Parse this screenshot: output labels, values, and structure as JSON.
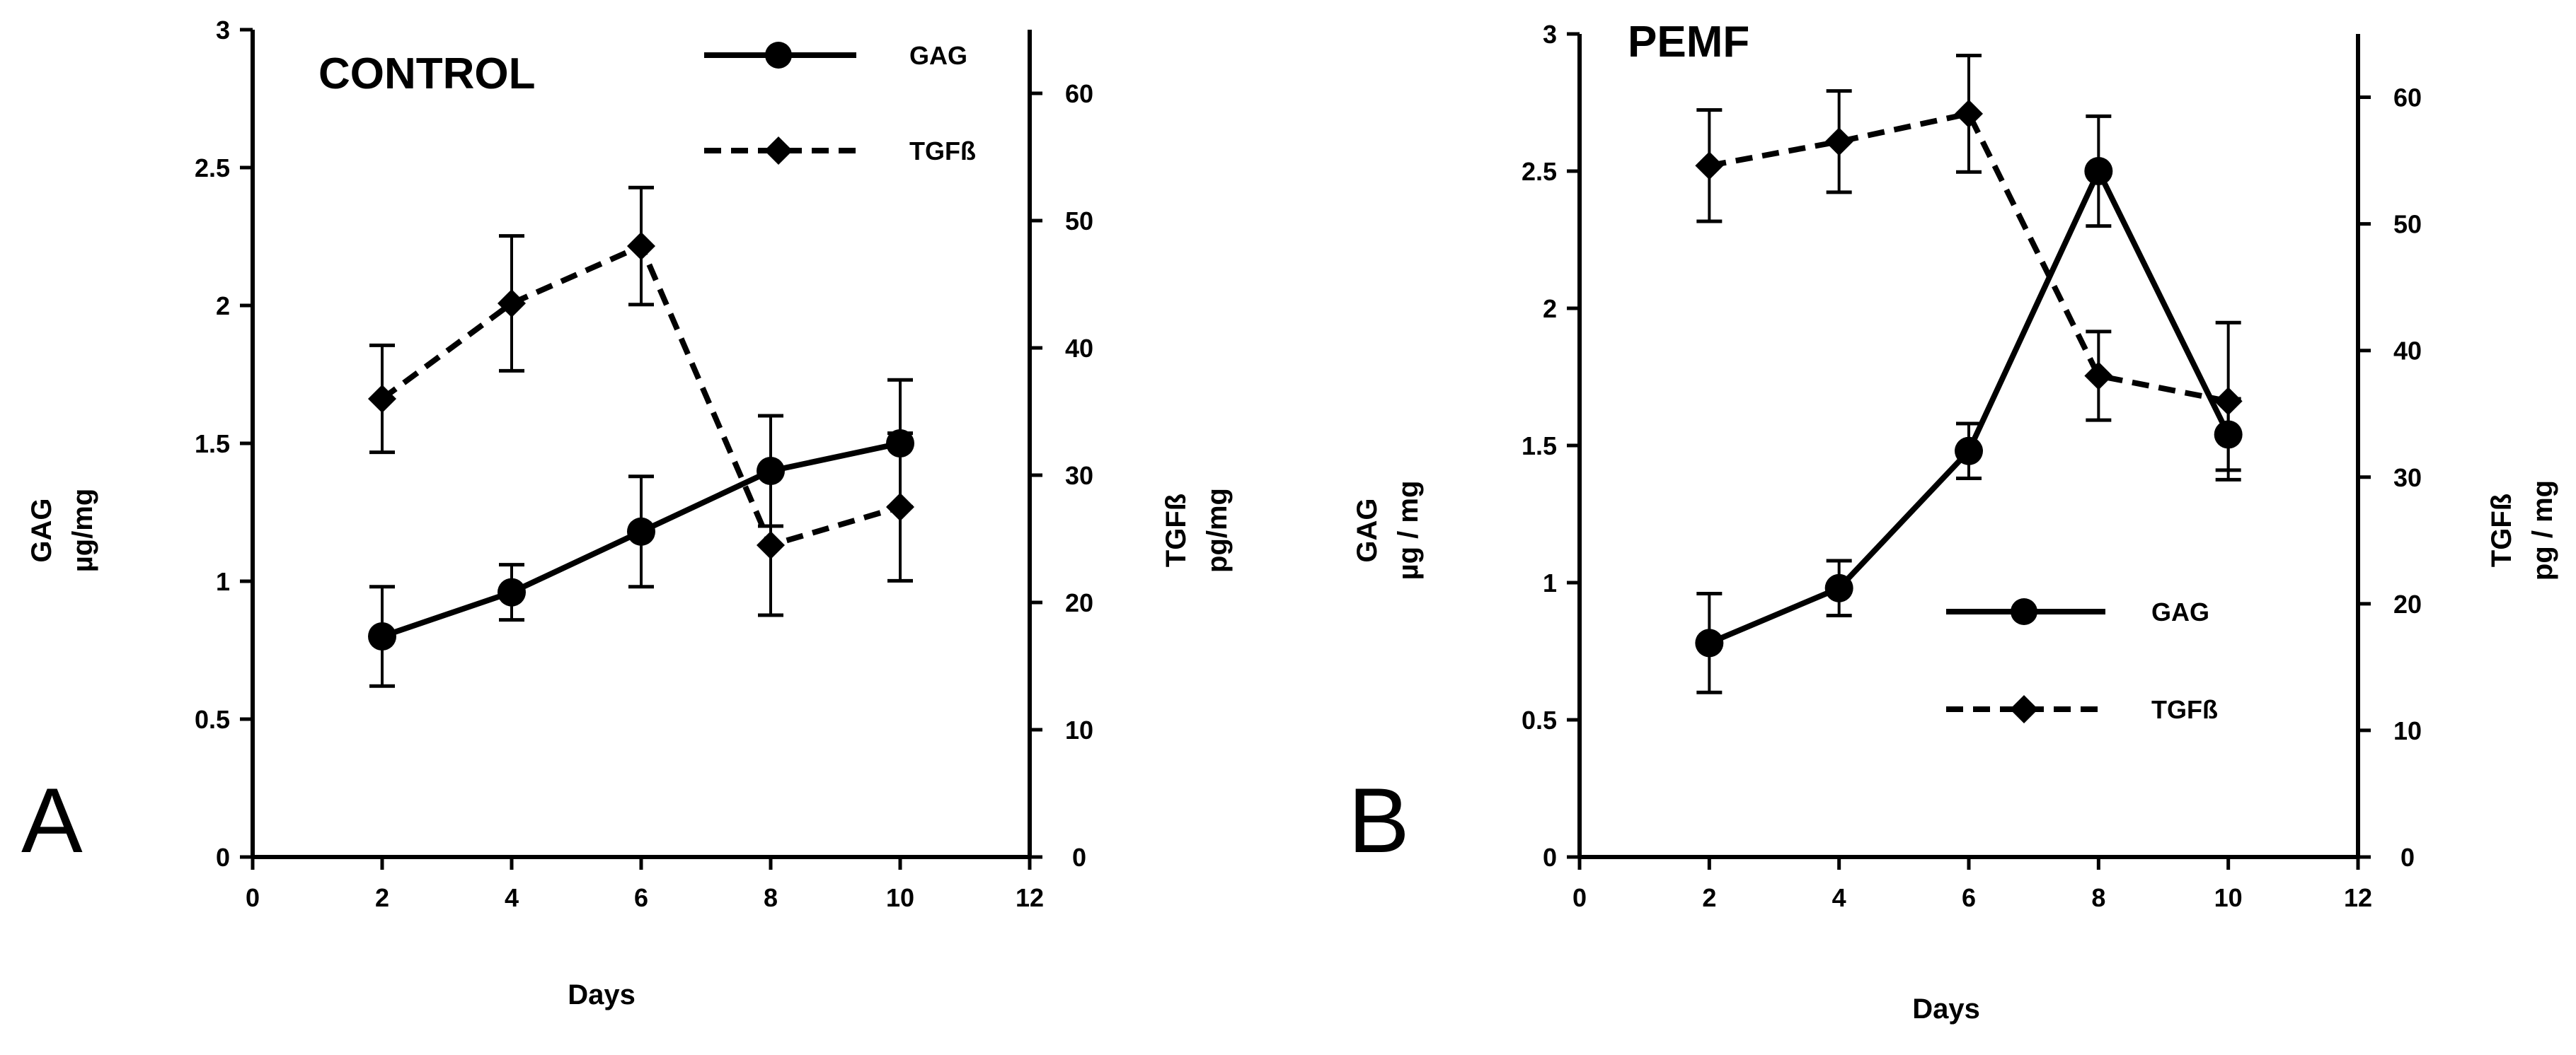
{
  "chart_data": [
    {
      "type": "line",
      "panel_label": "A",
      "title": "CONTROL",
      "xlabel": "Days",
      "ylabel_left": [
        "GAG",
        "µg/mg"
      ],
      "ylabel_right": [
        "TGFß",
        "pg/mg"
      ],
      "xlim": [
        0,
        12
      ],
      "xticks": [
        "0",
        "2",
        "4",
        "6",
        "8",
        "10",
        "12"
      ],
      "ylim_left": [
        0,
        3
      ],
      "yticks_left": [
        "0",
        "0.5",
        "1",
        "1.5",
        "2",
        "2.5",
        "3"
      ],
      "ylim_right": [
        0,
        65
      ],
      "yticks_right": [
        "0",
        "10",
        "20",
        "30",
        "40",
        "50",
        "60"
      ],
      "legend_position": "top-right",
      "series": [
        {
          "name": "GAG",
          "axis": "left",
          "style": "solid",
          "marker": "circle",
          "x": [
            2,
            4,
            6,
            8,
            10
          ],
          "y": [
            0.8,
            0.96,
            1.18,
            1.4,
            1.5
          ],
          "err": [
            0.18,
            0.1,
            0.2,
            0.2,
            0.23
          ]
        },
        {
          "name": "TGFß",
          "axis": "right",
          "style": "dashed",
          "marker": "diamond",
          "x": [
            2,
            4,
            6,
            8,
            10
          ],
          "y": [
            36,
            43.5,
            48,
            24.5,
            27.5
          ],
          "err": [
            4.2,
            5.3,
            4.6,
            5.5,
            5.8
          ]
        }
      ]
    },
    {
      "type": "line",
      "panel_label": "B",
      "title": "PEMF",
      "xlabel": "Days",
      "ylabel_left": [
        "GAG",
        "µg / mg"
      ],
      "ylabel_right": [
        "TGFß",
        "pg / mg"
      ],
      "xlim": [
        0,
        12
      ],
      "xticks": [
        "0",
        "2",
        "4",
        "6",
        "8",
        "10",
        "12"
      ],
      "ylim_left": [
        0,
        3
      ],
      "yticks_left": [
        "0",
        "0.5",
        "1",
        "1.5",
        "2",
        "2.5",
        "3"
      ],
      "ylim_right": [
        0,
        65
      ],
      "yticks_right": [
        "0",
        "10",
        "20",
        "30",
        "40",
        "50",
        "60"
      ],
      "legend_position": "center-right",
      "series": [
        {
          "name": "GAG",
          "axis": "left",
          "style": "solid",
          "marker": "circle",
          "x": [
            2,
            4,
            6,
            8,
            10
          ],
          "y": [
            0.78,
            0.98,
            1.48,
            2.5,
            1.54
          ],
          "err": [
            0.18,
            0.1,
            0.1,
            0.2,
            0.13
          ]
        },
        {
          "name": "TGFß",
          "axis": "right",
          "style": "dashed",
          "marker": "diamond",
          "x": [
            2,
            4,
            6,
            8,
            10
          ],
          "y": [
            54.6,
            56.5,
            58.7,
            38,
            36
          ],
          "err": [
            4.4,
            4,
            4.6,
            3.5,
            6.2
          ]
        }
      ]
    }
  ]
}
